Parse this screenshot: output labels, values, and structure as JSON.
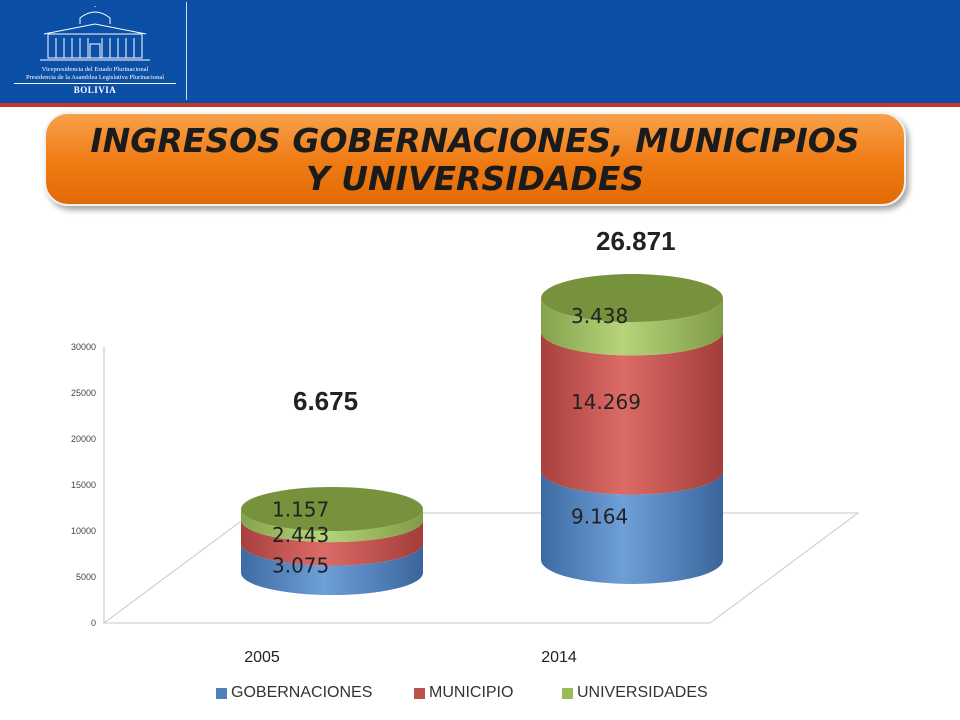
{
  "header": {
    "logo_line1": "Vicepresidencia del Estado Plurinacional",
    "logo_line2": "Presidencia de la Asamblea Legislativa Plurinacional",
    "country": "BOLIVIA"
  },
  "title": {
    "line1": "INGRESOS GOBERNACIONES,  MUNICIPIOS",
    "line2": "Y UNIVERSIDADES"
  },
  "totals": [
    "6.675",
    "26.871"
  ],
  "colors": {
    "header_bg": "#0b4fa6",
    "title_bg": "#f07a12",
    "gobernaciones": "#4f81bd",
    "municipio": "#c0504d",
    "universidades": "#9bbb59"
  },
  "chart_data": {
    "type": "bar",
    "style": "stacked 3D cylinder",
    "categories": [
      "2005",
      "2014"
    ],
    "series": [
      {
        "name": "GOBERNACIONES",
        "values": [
          3075,
          9164
        ],
        "labels": [
          "3.075",
          "9.164"
        ]
      },
      {
        "name": "MUNICIPIO",
        "values": [
          2443,
          14269
        ],
        "labels": [
          "2.443",
          "14.269"
        ]
      },
      {
        "name": "UNIVERSIDADES",
        "values": [
          1157,
          3438
        ],
        "labels": [
          "1.157",
          "3.438"
        ]
      }
    ],
    "totals": [
      6675,
      26871
    ],
    "ylim": [
      0,
      30000
    ],
    "yticks": [
      "0",
      "5000",
      "10000",
      "15000",
      "20000",
      "25000",
      "30000"
    ],
    "legend_position": "bottom",
    "grid": false
  }
}
